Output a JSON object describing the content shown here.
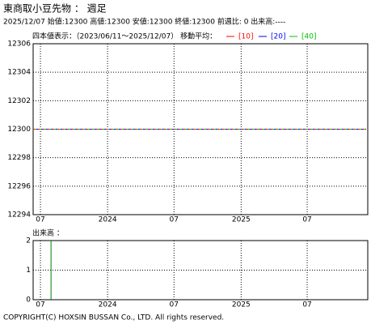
{
  "chart_data": [
    {
      "type": "line",
      "title": "東商取小豆先物 ： 週足",
      "subtitle": "2025/12/07 始値:12300 高値:12300 安値:12300 終値:12300 前週比: 0 出来高:----",
      "legend_title": "四本値表示：（2023/06/11～2025/12/07） 移動平均：",
      "x": [
        "2023/06/11",
        "2025/12/07"
      ],
      "xlim": [
        "2023/06/11",
        "2025/12/14"
      ],
      "xticks": [
        {
          "value": "2023/07",
          "label": "07"
        },
        {
          "value": "2024/01",
          "label": "2024"
        },
        {
          "value": "2024/07",
          "label": "07"
        },
        {
          "value": "2025/01",
          "label": "2025"
        },
        {
          "value": "2025/07",
          "label": "07"
        }
      ],
      "ylim": [
        12294,
        12306
      ],
      "yticks": [
        12294,
        12296,
        12298,
        12300,
        12302,
        12304,
        12306
      ],
      "grid": true,
      "series": [
        {
          "name": "[10]",
          "color": "#ff0000",
          "values": [
            12300,
            12300
          ]
        },
        {
          "name": "[20]",
          "color": "#0000ff",
          "values": [
            12300,
            12300
          ]
        },
        {
          "name": "[40]",
          "color": "#00c000",
          "values": [
            12300,
            12300
          ]
        }
      ]
    },
    {
      "type": "bar",
      "title": "出来高 ：",
      "x": [
        "2023/07/30"
      ],
      "values": [
        2
      ],
      "color": "#008000",
      "xlim": [
        "2023/06/11",
        "2025/12/14"
      ],
      "xticks": [
        {
          "value": "2023/07",
          "label": "07"
        },
        {
          "value": "2024/01",
          "label": "2024"
        },
        {
          "value": "2024/07",
          "label": "07"
        },
        {
          "value": "2025/01",
          "label": "2025"
        },
        {
          "value": "2025/07",
          "label": "07"
        }
      ],
      "ylim": [
        0,
        2
      ],
      "yticks": [
        0,
        1,
        2
      ],
      "grid": true
    }
  ],
  "copyright": "COPYRIGHT(C) HOXSIN BUSSAN Co., LTD. All rights reserved."
}
